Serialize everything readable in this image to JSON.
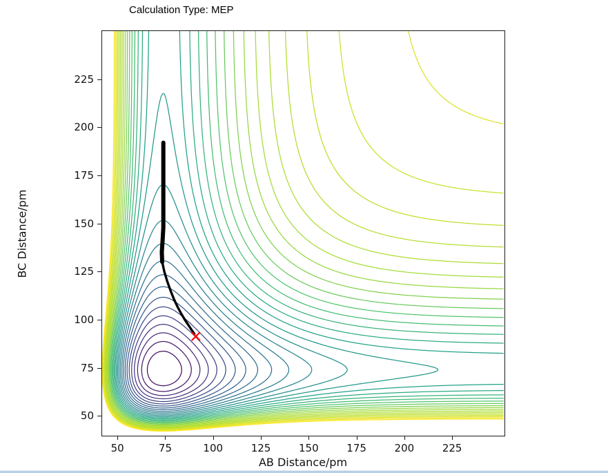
{
  "title": "Calculation Type: MEP",
  "chart_data": {
    "type": "contour",
    "title": "Calculation Type: MEP",
    "xlabel": "AB Distance/pm",
    "ylabel": "BC Distance/pm",
    "xlim": [
      42,
      252
    ],
    "ylim": [
      40,
      250
    ],
    "xticks": [
      50,
      75,
      100,
      125,
      150,
      175,
      200,
      225
    ],
    "yticks": [
      50,
      75,
      100,
      125,
      150,
      175,
      200,
      225
    ],
    "grid": false,
    "legend": "none",
    "colormap": "viridis",
    "colormap_stops": [
      [
        0.0,
        "#440154"
      ],
      [
        0.125,
        "#46327e"
      ],
      [
        0.25,
        "#365c8d"
      ],
      [
        0.375,
        "#277f8e"
      ],
      [
        0.5,
        "#1fa187"
      ],
      [
        0.625,
        "#4ac16d"
      ],
      [
        0.75,
        "#a0da39"
      ],
      [
        0.875,
        "#bddf26"
      ],
      [
        1.0,
        "#fde725"
      ]
    ],
    "potential": {
      "model": "sum-of-morse-surface",
      "re_pm": 74,
      "a_out": 0.032,
      "a_in": 0.028,
      "levels": {
        "min": 0.07,
        "max": 2.1,
        "count": 30
      },
      "line_width": 1.25
    },
    "mep_path": {
      "label": "minimum energy path",
      "color": "#000000",
      "points": [
        [
          74,
          192
        ],
        [
          74,
          183
        ],
        [
          74,
          174
        ],
        [
          74,
          165
        ],
        [
          74,
          156
        ],
        [
          74,
          148
        ],
        [
          73.6,
          141
        ],
        [
          73.2,
          135
        ],
        [
          73.4,
          130
        ],
        [
          74.5,
          125
        ],
        [
          76,
          120
        ],
        [
          77.8,
          115
        ],
        [
          79.6,
          110.5
        ],
        [
          81.5,
          106.5
        ],
        [
          83.4,
          103
        ],
        [
          85.3,
          99.8
        ],
        [
          87.2,
          97
        ],
        [
          88.8,
          94.6
        ],
        [
          90.2,
          92.6
        ]
      ],
      "thick_segment_end_index": 8,
      "thick_width": 6,
      "thin_width": 3.4
    },
    "saddle_marker": {
      "type": "x",
      "color": "#ff0000",
      "x": 91,
      "y": 91.3,
      "size": 6,
      "stroke_width": 2.2
    }
  },
  "page": {
    "background": "#ffffff",
    "bottom_divider_color": "#b9cfe8",
    "axis_color": "#1a1a1a"
  }
}
